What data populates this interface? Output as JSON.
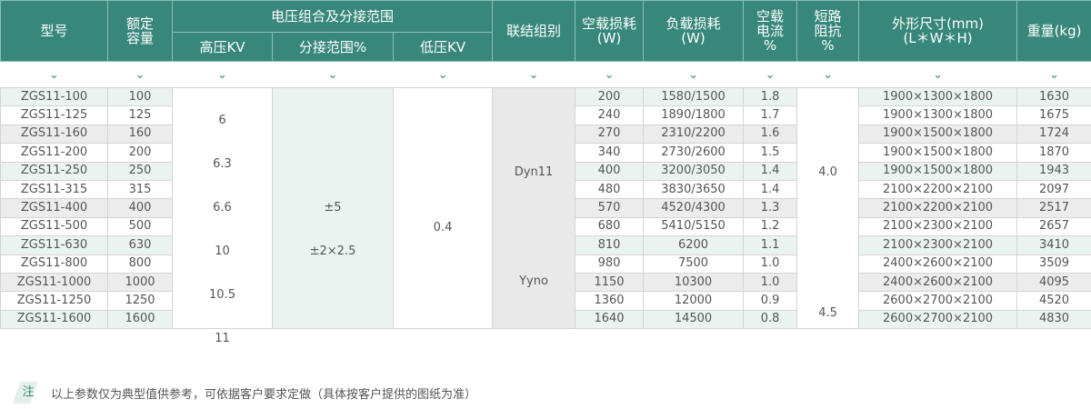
{
  "headers": {
    "model": "型号",
    "capacity": "额定\n容量",
    "voltage_group": "电压组合及分接范围",
    "hv": "高压KV",
    "tap": "分接范围%",
    "lv": "低压KV",
    "connection": "联结组别",
    "no_load_loss": "空载损耗\n(W)",
    "load_loss": "负载损耗\n(W)",
    "no_load_current": "空载\n电流\n%",
    "impedance": "短路\n阻抗\n%",
    "dimensions": "外形尺寸(mm)\n(L＊W＊H)",
    "weight": "重量(kg)"
  },
  "chevron": "⌄",
  "rows": [
    [
      "ZGS11-100",
      "100",
      "200",
      "1580/1500",
      "1.8",
      "1900×1300×1800",
      "1630"
    ],
    [
      "ZGS11-125",
      "125",
      "240",
      "1890/1800",
      "1.7",
      "1900×1300×1800",
      "1675"
    ],
    [
      "ZGS11-160",
      "160",
      "270",
      "2310/2200",
      "1.6",
      "1900×1500×1800",
      "1724"
    ],
    [
      "ZGS11-200",
      "200",
      "340",
      "2730/2600",
      "1.5",
      "1900×1500×1800",
      "1870"
    ],
    [
      "ZGS11-250",
      "250",
      "400",
      "3200/3050",
      "1.4",
      "1900×1500×1800",
      "1943"
    ],
    [
      "ZGS11-315",
      "315",
      "480",
      "3830/3650",
      "1.4",
      "2100×2200×2100",
      "2097"
    ],
    [
      "ZGS11-400",
      "400",
      "570",
      "4520/4300",
      "1.3",
      "2100×2200×2100",
      "2517"
    ],
    [
      "ZGS11-500",
      "500",
      "680",
      "5410/5150",
      "1.2",
      "2100×2300×2100",
      "2657"
    ],
    [
      "ZGS11-630",
      "630",
      "810",
      "6200",
      "1.1",
      "2100×2300×2100",
      "3410"
    ],
    [
      "ZGS11-800",
      "800",
      "980",
      "7500",
      "1.0",
      "2400×2600×2100",
      "3509"
    ],
    [
      "ZGS11-1000",
      "1000",
      "1150",
      "10300",
      "1.0",
      "2400×2600×2100",
      "4095"
    ],
    [
      "ZGS11-1250",
      "1250",
      "1360",
      "12000",
      "0.9",
      "2600×2700×2100",
      "4520"
    ],
    [
      "ZGS11-1600",
      "1600",
      "1640",
      "14500",
      "0.8",
      "2600×2700×2100",
      "4830"
    ]
  ],
  "merged": {
    "hv": [
      "6",
      "6.3",
      "6.6",
      "10",
      "10.5",
      "11"
    ],
    "tap": [
      "±5",
      "±2×2.5"
    ],
    "lv": "0.4",
    "connection": [
      "Dyn11",
      "Yyno"
    ],
    "impedance": [
      "4.0",
      "4.5"
    ]
  },
  "note": {
    "tag": "注",
    "text": "以上参数仅为典型值供参考，可依据客户要求定做（具体按客户提供的图纸为准）"
  },
  "colors": {
    "header": "#37877a",
    "row_green": "#eaf3ef",
    "row_gray": "#ececec"
  }
}
